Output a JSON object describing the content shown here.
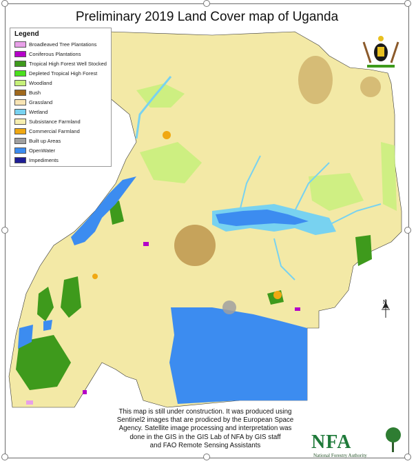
{
  "title": "Preliminary 2019 Land Cover map of Uganda",
  "legend": {
    "heading": "Legend",
    "items": [
      {
        "label": "Broadleaved Tree Plantations",
        "color": "#e8a0e8"
      },
      {
        "label": "Coniferous Plantations",
        "color": "#b400c8"
      },
      {
        "label": "Tropical High Forest Well Stocked",
        "color": "#3e9a1c"
      },
      {
        "label": "Depleted Tropical High Forest",
        "color": "#4be01e"
      },
      {
        "label": "Woodland",
        "color": "#c6f07a"
      },
      {
        "label": "Bush",
        "color": "#a0691e"
      },
      {
        "label": "Grassland",
        "color": "#f8e4b4"
      },
      {
        "label": "Wetland",
        "color": "#78d2f0"
      },
      {
        "label": "Subsistance Farmland",
        "color": "#f7efb0"
      },
      {
        "label": "Commercial Farmland",
        "color": "#f0a812"
      },
      {
        "label": "Built up Areas",
        "color": "#a0a0a0"
      },
      {
        "label": "OpenWater",
        "color": "#3c8cf0"
      },
      {
        "label": "Impediments",
        "color": "#1e1e96"
      }
    ]
  },
  "note": {
    "lines": [
      "This map is still under construction. It was produced using",
      "Sentinel2 images that are prodiced by the European Space",
      "Agency. Satellite image processing and interpretation was",
      "done in  the GIS in the GIS Lab of NFA by GIS staff",
      "and FAO Remote Sensing Assistants"
    ]
  },
  "logo": {
    "text": "NFA",
    "subtitle": "National Forestry Authority"
  },
  "north_arrow": {
    "label": "N"
  },
  "colors": {
    "land": "#f3e9a6",
    "water": "#3c8cf0",
    "wetland": "#78d2f0",
    "forest": "#3e9a1c",
    "woodland": "#c6f07a",
    "bush": "#a0691e",
    "commercial": "#f0a812"
  }
}
